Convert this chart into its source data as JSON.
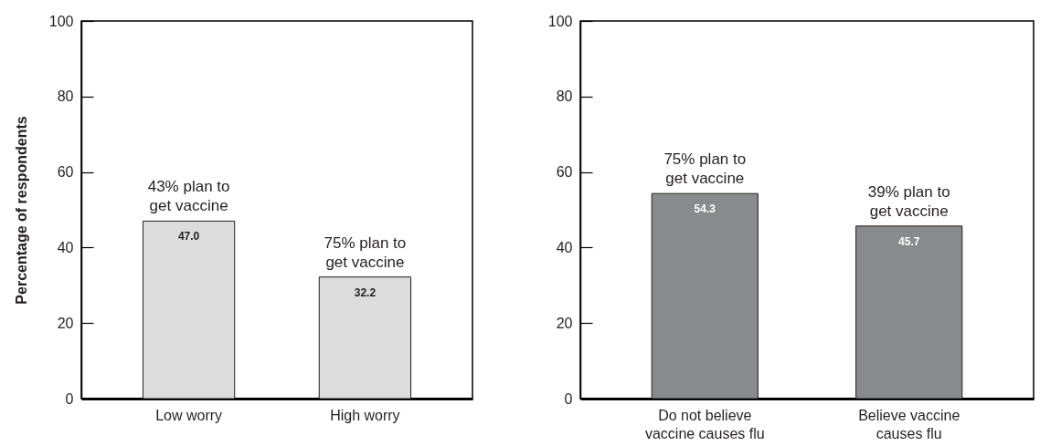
{
  "chart_data": [
    {
      "type": "bar",
      "ylabel": "Percentage of respondents",
      "categories": [
        "Low worry",
        "High worry"
      ],
      "values": [
        47.0,
        32.2
      ],
      "value_labels": [
        "47.0",
        "32.2"
      ],
      "colors": [
        "#dcdcdc",
        "#dcdcdc"
      ],
      "ylim": [
        0,
        100
      ],
      "yticks": [
        0,
        20,
        40,
        60,
        80,
        100
      ],
      "annotations": [
        {
          "text": "43% plan to\nget vaccine",
          "x": "Low worry",
          "y": 47.0
        },
        {
          "text": "75% plan to\nget vaccine",
          "x": "High worry",
          "y": 32.2
        }
      ]
    },
    {
      "type": "bar",
      "categories": [
        "Do not believe\nvaccine causes flu",
        "Believe vaccine\ncauses flu"
      ],
      "values": [
        54.3,
        45.7
      ],
      "value_labels": [
        "54.3",
        "45.7"
      ],
      "colors": [
        "#898a8d",
        "#898a8d"
      ],
      "ylim": [
        0,
        100
      ],
      "yticks": [
        0,
        20,
        40,
        60,
        80,
        100
      ],
      "annotations": [
        {
          "text": "75% plan to\nget vaccine",
          "x": "Do not believe\nvaccine causes flu",
          "y": 54.3
        },
        {
          "text": "39% plan to\nget vaccine",
          "x": "Believe vaccine\ncauses flu",
          "y": 45.7
        }
      ]
    }
  ]
}
